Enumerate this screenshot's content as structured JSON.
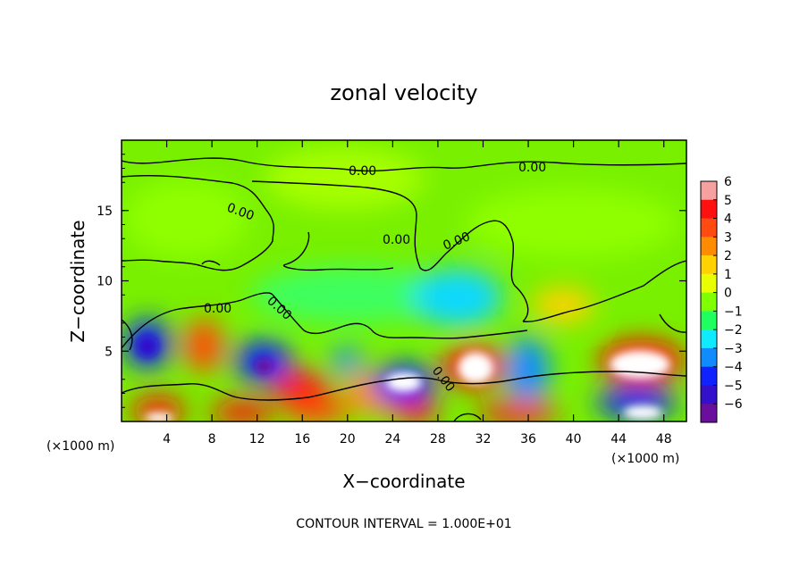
{
  "chart_data": {
    "type": "heatmap",
    "title": "zonal velocity",
    "xlabel": "X−coordinate",
    "ylabel": "Z−coordinate",
    "x_unit": "(×1000 m)",
    "y_unit": "(×1000 m)",
    "xlim": [
      0,
      50
    ],
    "ylim": [
      0,
      20
    ],
    "x_ticks": [
      4,
      8,
      12,
      16,
      20,
      24,
      28,
      32,
      36,
      40,
      44,
      48
    ],
    "y_ticks": [
      5,
      10,
      15
    ],
    "colorbar": {
      "ticks": [
        6,
        5,
        4,
        3,
        2,
        1,
        0,
        -1,
        -2,
        -3,
        -4,
        -5,
        -6
      ],
      "tick_labels": [
        "6",
        "5",
        "4",
        "3",
        "2",
        "1",
        "0",
        "−1",
        "−2",
        "−3",
        "−4",
        "−5",
        "−6"
      ],
      "colors": [
        "#f6a0a0",
        "#ff1010",
        "#ff4b10",
        "#ff8c00",
        "#ffd200",
        "#e8ff00",
        "#80ff00",
        "#20ff60",
        "#10eaff",
        "#108cff",
        "#1023ff",
        "#3210cc",
        "#6a0e9e"
      ]
    },
    "contour_labels": [
      "0.00",
      "0.00",
      "0.00",
      "0.00",
      "0.00",
      "0.00",
      "0.00",
      "0.00"
    ],
    "features": [
      {
        "x": 4,
        "z": 6.8,
        "value": -4.6
      },
      {
        "x": 7.5,
        "z": 5.3,
        "value": 3.1
      },
      {
        "x": 12.5,
        "z": 4.8,
        "value": -5.1
      },
      {
        "x": 15.0,
        "z": 2.3,
        "value": 3.0
      },
      {
        "x": 20.0,
        "z": 1.5,
        "value": 3.5
      },
      {
        "x": 24.5,
        "z": 2.3,
        "value": -5.0
      },
      {
        "x": 25.5,
        "z": 3.5,
        "value": 6.0
      },
      {
        "x": 31.5,
        "z": 4.4,
        "value": 6.0
      },
      {
        "x": 36.5,
        "z": 3.0,
        "value": -4.0
      },
      {
        "x": 44.5,
        "z": 4.2,
        "value": 6.0
      },
      {
        "x": 46.0,
        "z": 0.9,
        "value": -5.5
      },
      {
        "x": 31.0,
        "z": 8.8,
        "value": -2.5
      },
      {
        "x": 40.0,
        "z": 8.0,
        "value": 2.0
      }
    ]
  },
  "footer": {
    "contour_interval": "CONTOUR INTERVAL = 1.000E+01"
  }
}
